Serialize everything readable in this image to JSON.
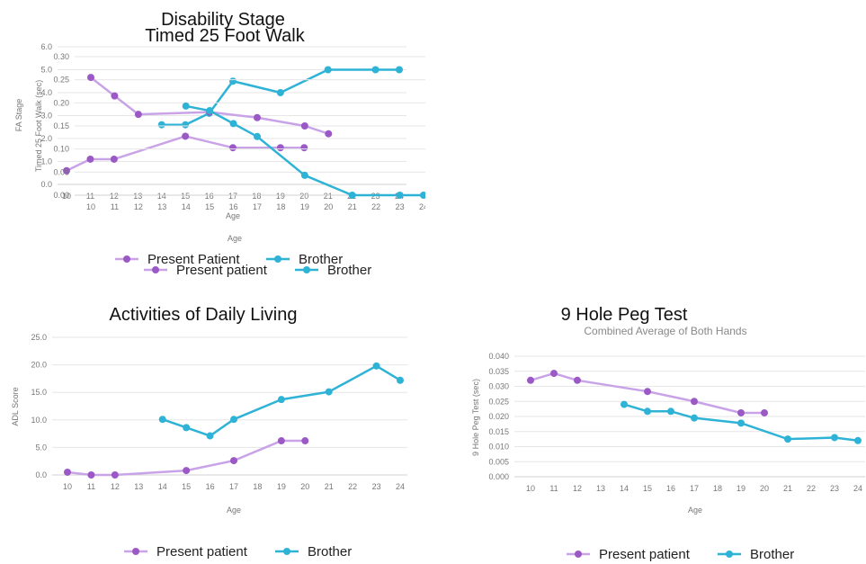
{
  "colors": {
    "present": "#c9a3e8",
    "present_marker": "#9b59c6",
    "brother": "#2eb3d6"
  },
  "chart_data": [
    {
      "type": "line",
      "title": "Disability Stage",
      "subtitle": "",
      "xlabel": "Age",
      "ylabel": "FA Stage",
      "categories": [
        "10",
        "11",
        "12",
        "13",
        "14",
        "15",
        "16",
        "17",
        "18",
        "19",
        "20",
        "21",
        "22",
        "23",
        "24"
      ],
      "y_ticks": [
        "0.0",
        "1.0",
        "2.0",
        "3.0",
        "4.0",
        "5.0",
        "6.0"
      ],
      "ylim": [
        0,
        6
      ],
      "series": [
        {
          "name": "Present Patient",
          "color_key": "present",
          "points": [
            [
              10,
              0.6
            ],
            [
              11,
              1.1
            ],
            [
              12,
              1.1
            ],
            [
              15,
              2.1
            ],
            [
              17,
              1.6
            ],
            [
              19,
              1.6
            ],
            [
              20,
              1.6
            ]
          ]
        },
        {
          "name": "Brother",
          "color_key": "brother",
          "points": [
            [
              14,
              2.6
            ],
            [
              15,
              2.6
            ],
            [
              16,
              3.1
            ],
            [
              17,
              4.5
            ],
            [
              19,
              4.0
            ],
            [
              21,
              5.0
            ],
            [
              23,
              5.0
            ],
            [
              24,
              5.0
            ]
          ]
        }
      ]
    },
    {
      "type": "line",
      "title": "Timed 25 Foot Walk",
      "subtitle": "",
      "xlabel": "Age",
      "ylabel": "Timed 25 Foot Walk (sec)",
      "categories": [
        "10",
        "11",
        "12",
        "13",
        "14",
        "15",
        "16",
        "17",
        "18",
        "19",
        "20",
        "21",
        "22",
        "23",
        "24"
      ],
      "y_ticks": [
        "0.00",
        "0.05",
        "0.10",
        "0.15",
        "0.20",
        "0.25",
        "0.30"
      ],
      "ylim": [
        0,
        0.3
      ],
      "series": [
        {
          "name": "Present patient",
          "color_key": "present",
          "points": [
            [
              10,
              0.255
            ],
            [
              11,
              0.215
            ],
            [
              12,
              0.175
            ],
            [
              15,
              0.18
            ],
            [
              17,
              0.168
            ],
            [
              19,
              0.15
            ],
            [
              20,
              0.133
            ]
          ]
        },
        {
          "name": "Brother",
          "color_key": "brother",
          "points": [
            [
              14,
              0.193
            ],
            [
              15,
              0.183
            ],
            [
              16,
              0.155
            ],
            [
              17,
              0.127
            ],
            [
              19,
              0.043
            ],
            [
              21,
              0.0
            ],
            [
              23,
              0.0
            ],
            [
              24,
              0.0
            ]
          ]
        }
      ]
    },
    {
      "type": "line",
      "title": "Activities of Daily Living",
      "subtitle": "",
      "xlabel": "Age",
      "ylabel": "ADL Score",
      "categories": [
        "10",
        "11",
        "12",
        "13",
        "14",
        "15",
        "16",
        "17",
        "18",
        "19",
        "20",
        "21",
        "22",
        "23",
        "24"
      ],
      "y_ticks": [
        "0.0",
        "5.0",
        "10.0",
        "15.0",
        "20.0",
        "25.0"
      ],
      "ylim": [
        0,
        25
      ],
      "series": [
        {
          "name": "Present patient",
          "color_key": "present",
          "points": [
            [
              10,
              0.5
            ],
            [
              11,
              0.0
            ],
            [
              12,
              0.0
            ],
            [
              15,
              0.8
            ],
            [
              17,
              2.6
            ],
            [
              19,
              6.2
            ],
            [
              20,
              6.2
            ]
          ]
        },
        {
          "name": "Brother",
          "color_key": "brother",
          "points": [
            [
              14,
              10.1
            ],
            [
              15,
              8.6
            ],
            [
              16,
              7.1
            ],
            [
              17,
              10.1
            ],
            [
              19,
              13.7
            ],
            [
              21,
              15.1
            ],
            [
              23,
              19.8
            ],
            [
              24,
              17.2
            ]
          ]
        }
      ]
    },
    {
      "type": "line",
      "title": "9 Hole Peg Test",
      "subtitle": "Combined Average of Both Hands",
      "xlabel": "Age",
      "ylabel": "9 Hole Peg Test (sec)",
      "categories": [
        "10",
        "11",
        "12",
        "13",
        "14",
        "15",
        "16",
        "17",
        "18",
        "19",
        "20",
        "21",
        "22",
        "23",
        "24"
      ],
      "y_ticks": [
        "0.000",
        "0.005",
        "0.010",
        "0.015",
        "0.020",
        "0.025",
        "0.030",
        "0.035",
        "0.040"
      ],
      "ylim": [
        0,
        0.04
      ],
      "series": [
        {
          "name": "Present patient",
          "color_key": "present",
          "points": [
            [
              10,
              0.032
            ],
            [
              11,
              0.0343
            ],
            [
              12,
              0.032
            ],
            [
              15,
              0.0283
            ],
            [
              17,
              0.025
            ],
            [
              19,
              0.0212
            ],
            [
              20,
              0.0212
            ]
          ]
        },
        {
          "name": "Brother",
          "color_key": "brother",
          "points": [
            [
              14,
              0.024
            ],
            [
              15,
              0.0217
            ],
            [
              16,
              0.0217
            ],
            [
              17,
              0.0195
            ],
            [
              19,
              0.0178
            ],
            [
              21,
              0.0125
            ],
            [
              23,
              0.013
            ],
            [
              24,
              0.012
            ]
          ]
        }
      ]
    }
  ]
}
